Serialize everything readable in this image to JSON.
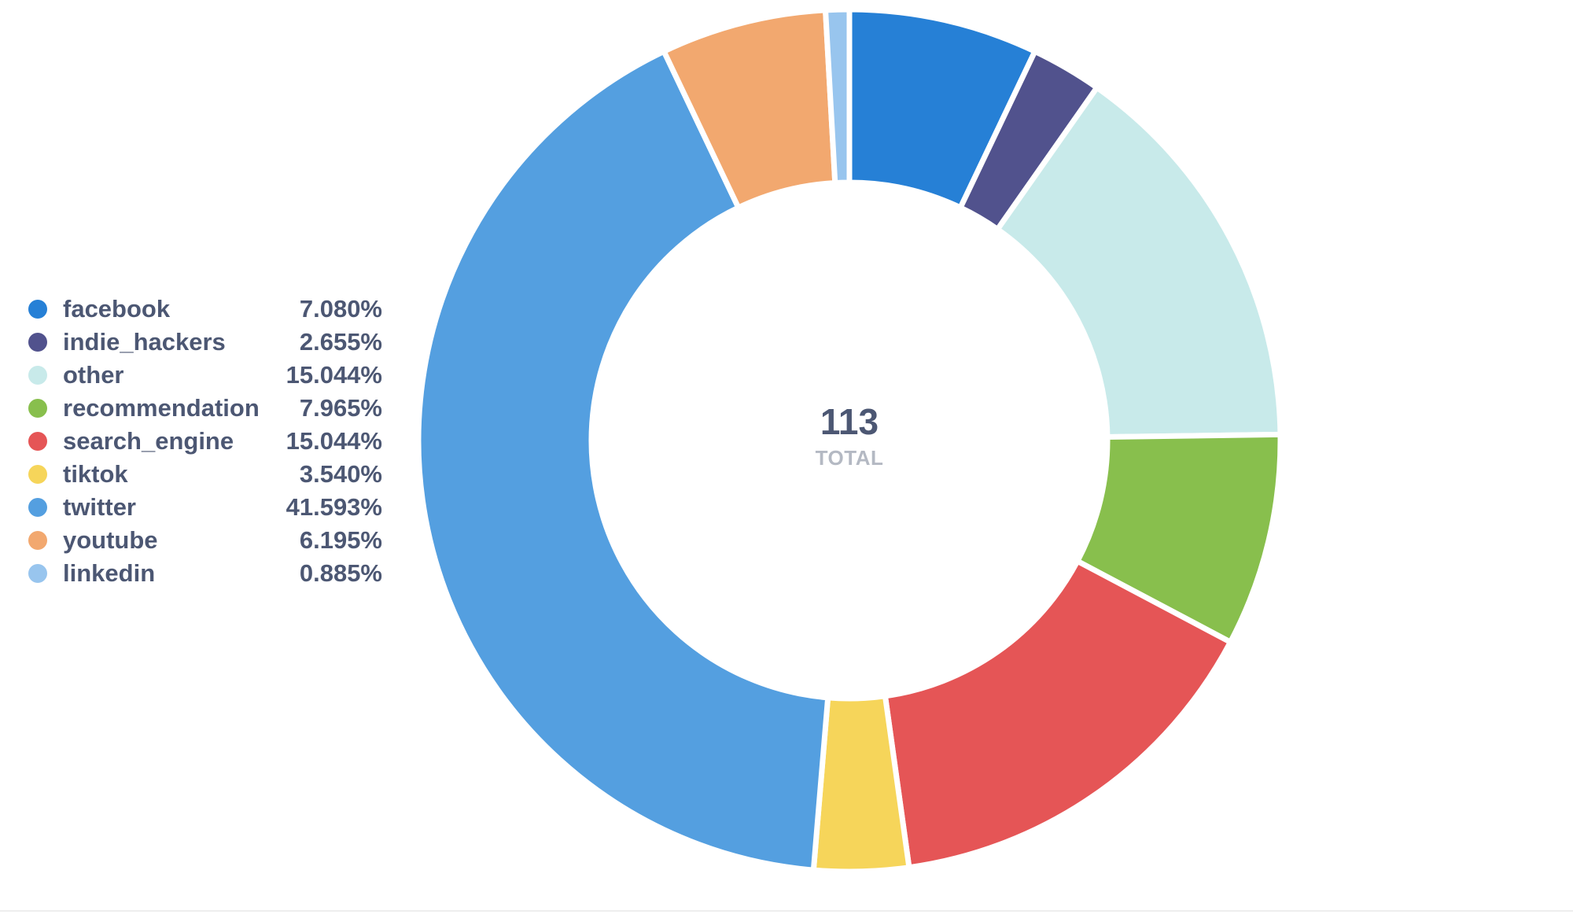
{
  "chart_data": {
    "type": "pie",
    "title": "",
    "total": {
      "value": "113",
      "label": "TOTAL"
    },
    "slices": [
      {
        "label": "facebook",
        "percent": "7.080%",
        "value": 7.08,
        "color": "#2680d6"
      },
      {
        "label": "indie_hackers",
        "percent": "2.655%",
        "value": 2.655,
        "color": "#51528d"
      },
      {
        "label": "other",
        "percent": "15.044%",
        "value": 15.044,
        "color": "#c8eaea"
      },
      {
        "label": "recommendation",
        "percent": "7.965%",
        "value": 7.965,
        "color": "#88bf4d"
      },
      {
        "label": "search_engine",
        "percent": "15.044%",
        "value": 15.044,
        "color": "#e55556"
      },
      {
        "label": "tiktok",
        "percent": "3.540%",
        "value": 3.54,
        "color": "#f6d55a"
      },
      {
        "label": "twitter",
        "percent": "41.593%",
        "value": 41.593,
        "color": "#549fe0"
      },
      {
        "label": "youtube",
        "percent": "6.195%",
        "value": 6.195,
        "color": "#f2a86f"
      },
      {
        "label": "linkedin",
        "percent": "0.885%",
        "value": 0.885,
        "color": "#98c5ee"
      }
    ]
  }
}
